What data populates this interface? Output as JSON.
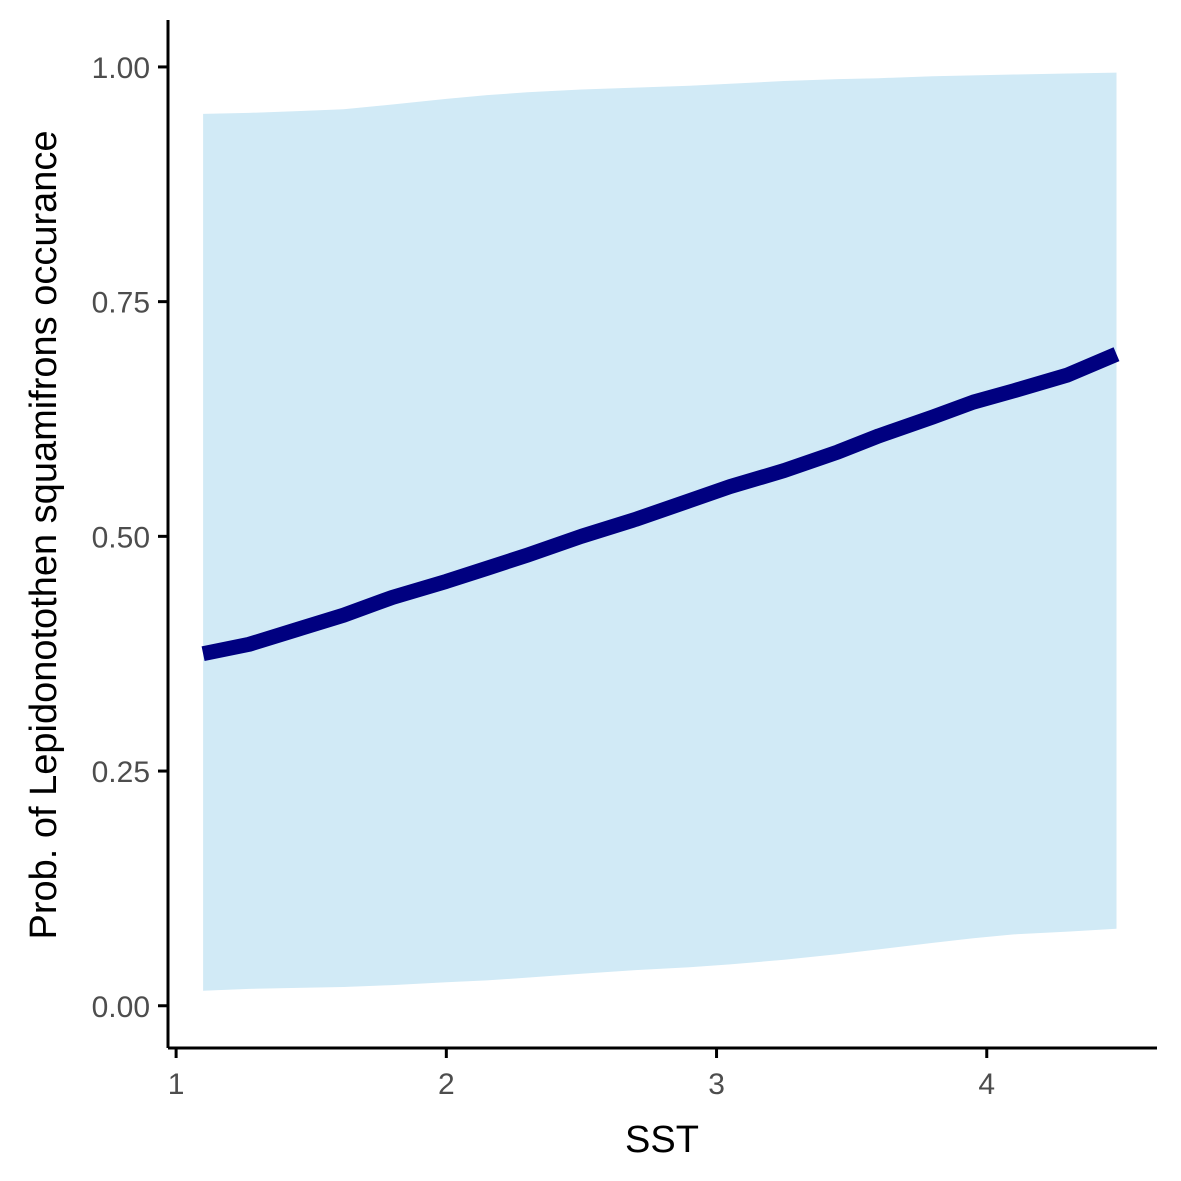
{
  "chart_data": {
    "type": "line",
    "xlabel": "SST",
    "ylabel": "Prob. of  Lepidonotothen squamifrons  occurance",
    "xlim": [
      0.97,
      4.63
    ],
    "ylim": [
      -0.045,
      1.05
    ],
    "x_ticks": [
      {
        "value": 1,
        "label": "1"
      },
      {
        "value": 2,
        "label": "2"
      },
      {
        "value": 3,
        "label": "3"
      },
      {
        "value": 4,
        "label": "4"
      }
    ],
    "y_ticks": [
      {
        "value": 0.0,
        "label": "0.00"
      },
      {
        "value": 0.25,
        "label": "0.25"
      },
      {
        "value": 0.5,
        "label": "0.50"
      },
      {
        "value": 0.75,
        "label": "0.75"
      },
      {
        "value": 1.0,
        "label": "1.00"
      }
    ],
    "grid": false,
    "series": [
      {
        "line_color": "#000080",
        "ribbon_color": "#d1eaf6",
        "x": [
          1.1,
          1.27,
          1.45,
          1.62,
          1.8,
          2.0,
          2.15,
          2.3,
          2.5,
          2.7,
          2.9,
          3.05,
          3.25,
          3.45,
          3.6,
          3.8,
          3.95,
          4.1,
          4.3,
          4.48
        ],
        "y": [
          0.375,
          0.385,
          0.401,
          0.416,
          0.435,
          0.452,
          0.466,
          0.48,
          0.5,
          0.518,
          0.538,
          0.553,
          0.57,
          0.59,
          0.607,
          0.627,
          0.643,
          0.655,
          0.672,
          0.694
        ],
        "lower": [
          0.016,
          0.018,
          0.019,
          0.02,
          0.022,
          0.025,
          0.027,
          0.03,
          0.034,
          0.038,
          0.041,
          0.044,
          0.049,
          0.055,
          0.06,
          0.067,
          0.072,
          0.076,
          0.079,
          0.082
        ],
        "upper": [
          0.95,
          0.951,
          0.953,
          0.955,
          0.96,
          0.966,
          0.97,
          0.973,
          0.976,
          0.978,
          0.98,
          0.982,
          0.985,
          0.987,
          0.988,
          0.99,
          0.991,
          0.992,
          0.993,
          0.994
        ]
      }
    ]
  }
}
